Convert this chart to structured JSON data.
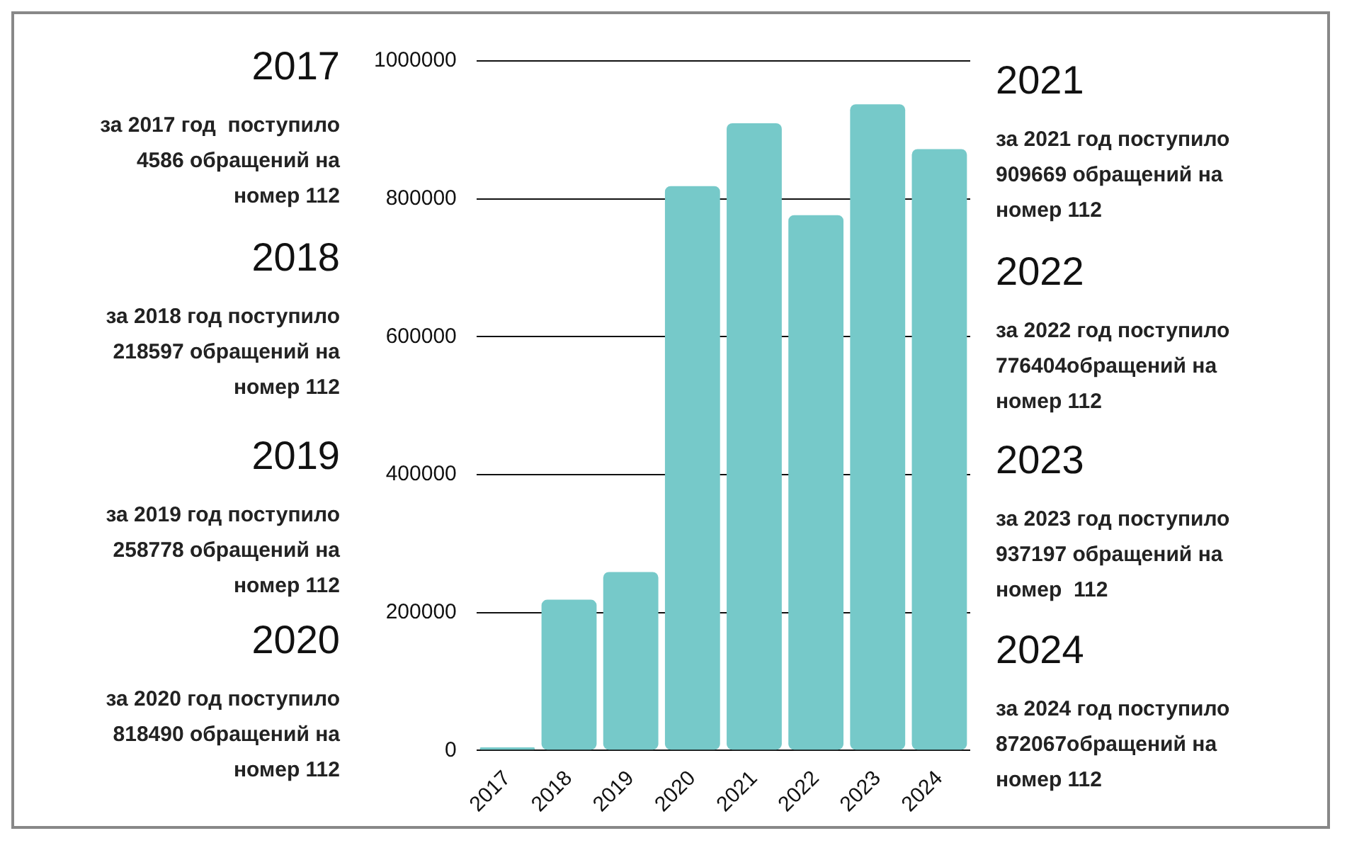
{
  "chart_data": {
    "type": "bar",
    "categories": [
      "2017",
      "2018",
      "2019",
      "2020",
      "2021",
      "2022",
      "2023",
      "2024"
    ],
    "values": [
      4586,
      218597,
      258778,
      818490,
      909669,
      776404,
      937197,
      872067
    ],
    "color": "#76c9c9",
    "ylim": [
      0,
      1000000
    ],
    "yticks": [
      0,
      200000,
      400000,
      600000,
      800000,
      1000000
    ],
    "grid": "y",
    "annotations": [
      "2017",
      "за 2017 год  поступило\n4586 обращений на\nномер 112",
      "2018",
      "за 2018 год поступило\n218597 обращений на\nномер 112",
      "2019",
      "за 2019 год поступило\n258778 обращений на\nномер 112",
      "2020",
      "за 2020 год поступило\n818490 обращений на\nномер 112",
      "2021",
      "за 2021 год поступило\n909669 обращений на\nномер 112",
      "2022",
      "за 2022 год поступило\n776404обращений на\nномер 112",
      "2023",
      "за 2023 год поступило\n937197 обращений на\nномер  112",
      "2024",
      "за 2024 год поступило\n872067обращений на\nномер 112"
    ]
  }
}
